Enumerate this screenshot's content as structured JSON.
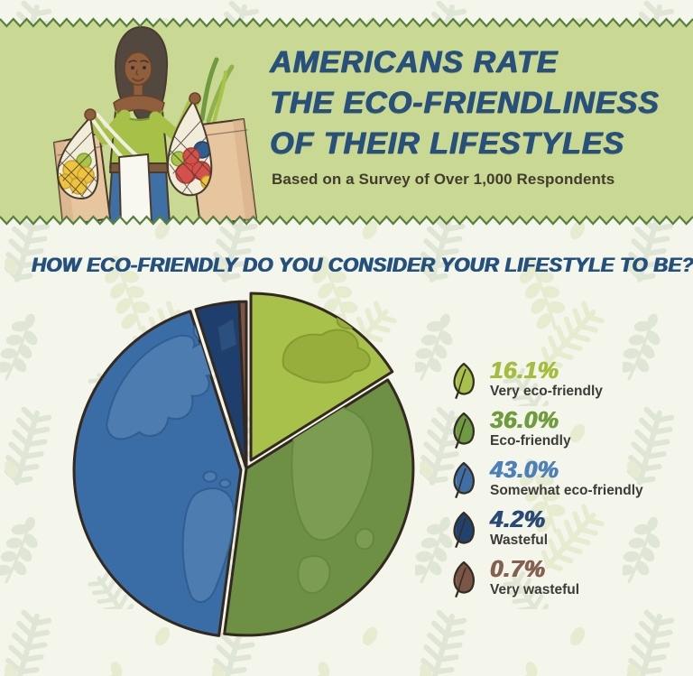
{
  "header": {
    "title_lines": [
      "AMERICANS RATE",
      "THE ECO-FRIENDLINESS",
      "OF THEIR LIFESTYLES"
    ],
    "subtitle": "Based on a Survey of Over 1,000 Respondents"
  },
  "question": "HOW ECO-FRIENDLY DO YOU CONSIDER YOUR LIFESTYLE TO BE?",
  "chart_data": {
    "type": "pie",
    "style": "globe-illustration",
    "title": "How eco-friendly do you consider your lifestyle to be?",
    "start_angle_deg": 0,
    "direction": "clockwise",
    "legend_position": "right",
    "exploded_slices": [
      "Very eco-friendly",
      "Somewhat eco-friendly"
    ],
    "slices": [
      {
        "label": "Very eco-friendly",
        "value": 16.1,
        "display": "16.1%",
        "color": "#a8c14b",
        "text_color": "#a4bd3c",
        "leaf": "#a8c14b",
        "leaf_highlight": "#dfe8b4"
      },
      {
        "label": "Eco-friendly",
        "value": 36.0,
        "display": "36.0%",
        "color": "#6d9044",
        "text_color": "#6f9c3d",
        "leaf": "#6f9a44",
        "leaf_highlight": "#a3c177"
      },
      {
        "label": "Somewhat eco-friendly",
        "value": 43.0,
        "display": "43.0%",
        "color": "#3a6ca6",
        "text_color": "#4c80ba",
        "leaf": "#3f6ea6",
        "leaf_highlight": "#8fb3d4"
      },
      {
        "label": "Wasteful",
        "value": 4.2,
        "display": "4.2%",
        "color": "#1e3f6e",
        "text_color": "#284a74",
        "leaf": "#21416f",
        "leaf_highlight": "#446a96"
      },
      {
        "label": "Very wasteful",
        "value": 0.7,
        "display": "0.7%",
        "color": "#7b5648",
        "text_color": "#84604f",
        "leaf": "#7b5648",
        "leaf_highlight": "#a8826f"
      }
    ]
  },
  "colors": {
    "title": "#27507d",
    "subtitle": "#423c2e",
    "question": "#24507e",
    "legend_label": "#3c3b37",
    "header_bg": "#c9d893",
    "zigzag": "#55803d",
    "page_bg": "#f4f5eb",
    "pattern_fern": "#e0e6d6",
    "pattern_sprig": "#e7ecd1",
    "pie_outline": "#33291f"
  }
}
